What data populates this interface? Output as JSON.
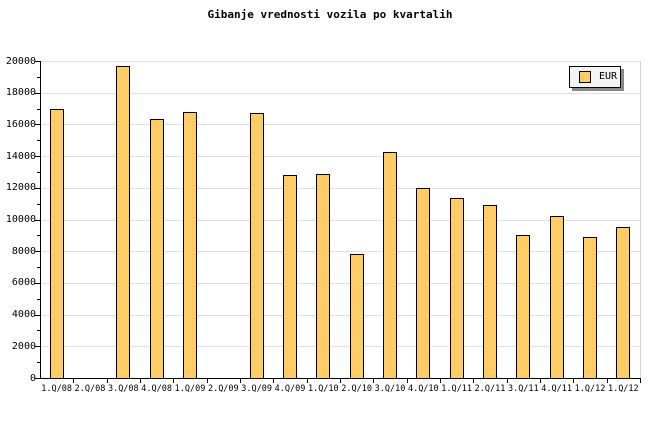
{
  "title": "Gibanje vrednosti vozila po kvartalih",
  "legend": {
    "label": "EUR",
    "swatch_color": "#FFCC66",
    "bg_color": "#F4F4F4",
    "shadow_color": "#888888"
  },
  "colors": {
    "background": "#FFFFFF",
    "bar_fill": "#FFCC66",
    "bar_border": "#000000",
    "gridline": "#E0E0E0",
    "frame": "#D4D4D4",
    "axis": "#000000",
    "text": "#000000"
  },
  "y_axis": {
    "tick_labels": [
      "0",
      "2000",
      "4000",
      "6000",
      "8000",
      "10000",
      "12000",
      "14000",
      "16000",
      "18000",
      "20000"
    ]
  },
  "chart_data": {
    "type": "bar",
    "title": "Gibanje vrednosti vozila po kvartalih",
    "categories": [
      "1.Q/08",
      "2.Q/08",
      "3.Q/08",
      "4.Q/08",
      "1.Q/09",
      "2.Q/09",
      "3.Q/09",
      "4.Q/09",
      "1.Q/10",
      "2.Q/10",
      "3.Q/10",
      "4.Q/10",
      "1.Q/11",
      "2.Q/11",
      "3.Q/11",
      "4.Q/11",
      "1.Q/12",
      "1.Q/12"
    ],
    "series": [
      {
        "name": "EUR",
        "values": [
          17000,
          null,
          19700,
          16350,
          16800,
          null,
          16700,
          12800,
          12900,
          7800,
          14250,
          12000,
          11350,
          10900,
          9000,
          10250,
          8900,
          9550
        ]
      }
    ],
    "xlabel": "",
    "ylabel": "",
    "ylim": [
      0,
      20000
    ],
    "ytick_major": 2000,
    "ytick_minor": 1000,
    "grid": "horizontal-major",
    "legend_position": "top-right"
  }
}
